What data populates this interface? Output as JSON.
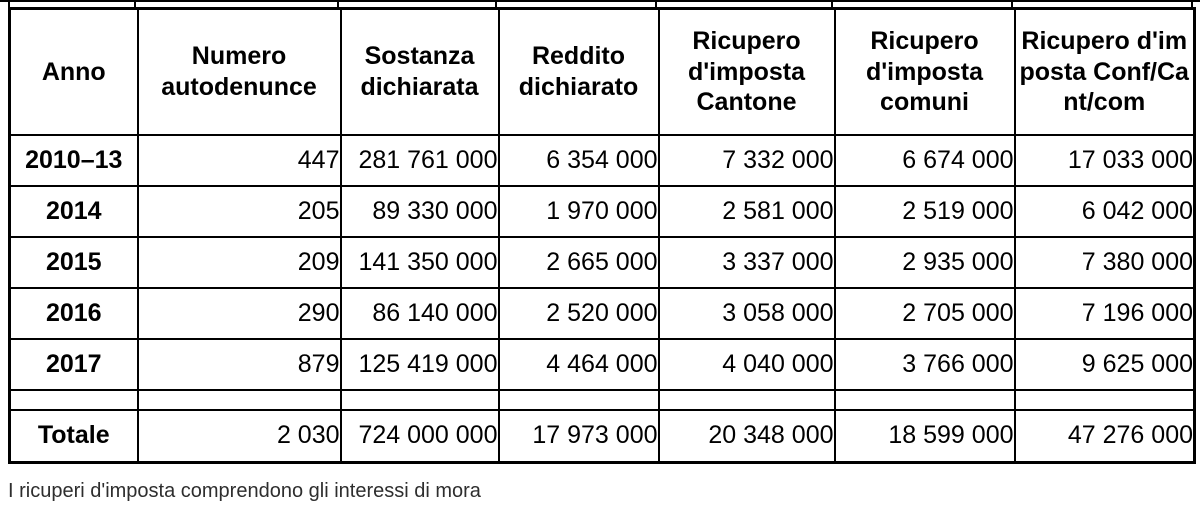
{
  "colors": {
    "border": "#000000",
    "text": "#000000",
    "footnote_text": "#2e2e2e",
    "background": "#ffffff"
  },
  "chart_data": {
    "type": "table",
    "columns": [
      "Anno",
      "Numero autodenunce",
      "Sostanza dichiarata",
      "Reddito dichiarato",
      "Ricupero d'imposta Cantone",
      "Ricupero d'imposta comuni",
      "Ricupero d'imposta Conf/Cant/com"
    ],
    "rows": [
      [
        "2010–13",
        "447",
        "281 761 000",
        "6 354 000",
        "7 332 000",
        "6 674 000",
        "17 033 000"
      ],
      [
        "2014",
        "205",
        "89 330 000",
        "1 970 000",
        "2 581 000",
        "2 519 000",
        "6 042 000"
      ],
      [
        "2015",
        "209",
        "141 350 000",
        "2 665 000",
        "3 337 000",
        "2 935 000",
        "7 380 000"
      ],
      [
        "2016",
        "290",
        "86 140 000",
        "2 520 000",
        "3 058 000",
        "2 705 000",
        "7 196 000"
      ],
      [
        "2017",
        "879",
        "125 419 000",
        "4 464 000",
        "4 040 000",
        "3 766 000",
        "9 625 000"
      ]
    ],
    "total_row": [
      "Totale",
      "2 030",
      "724 000 000",
      "17 973 000",
      "20 348 000",
      "18 599 000",
      "47 276 000"
    ],
    "footnote": "I ricuperi d'imposta comprendono gli interessi di mora"
  }
}
